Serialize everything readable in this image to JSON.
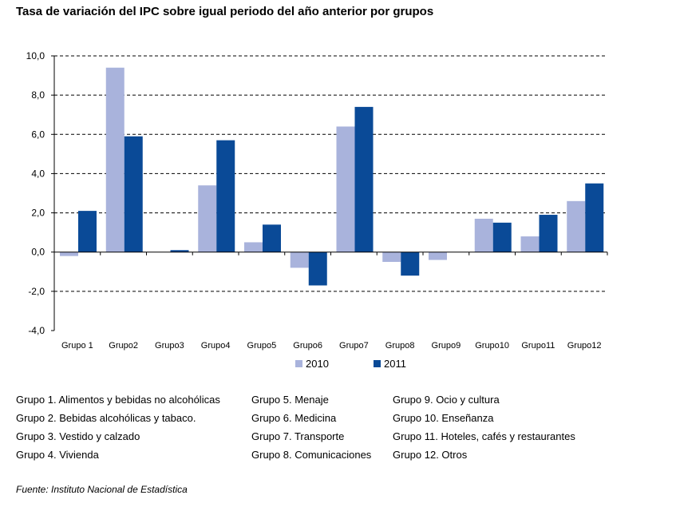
{
  "chart_data": {
    "type": "bar",
    "title": "Tasa de variación del IPC sobre igual periodo del año anterior por grupos",
    "categories": [
      "Grupo 1",
      "Grupo2",
      "Grupo3",
      "Grupo4",
      "Grupo5",
      "Grupo6",
      "Grupo7",
      "Grupo8",
      "Grupo9",
      "Grupo10",
      "Grupo11",
      "Grupo12"
    ],
    "series": [
      {
        "name": "2010",
        "color": "#a9b3dc",
        "values": [
          -0.2,
          9.4,
          0.0,
          3.4,
          0.5,
          -0.8,
          6.4,
          -0.5,
          -0.4,
          1.7,
          0.8,
          2.6
        ]
      },
      {
        "name": "2011",
        "color": "#0a4a97",
        "values": [
          2.1,
          5.9,
          0.1,
          5.7,
          1.4,
          -1.7,
          7.4,
          -1.2,
          0.0,
          1.5,
          1.9,
          3.5
        ]
      }
    ],
    "yticks": [
      "10,0",
      "8,0",
      "6,0",
      "4,0",
      "2,0",
      "0,0",
      "-2,0",
      "-4,0"
    ],
    "ytick_values": [
      10,
      8,
      6,
      4,
      2,
      0,
      -2,
      -4
    ],
    "ylim": [
      -4,
      10
    ],
    "grid": true,
    "grid_style": "dashed",
    "legend_position": "bottom"
  },
  "groups_legend": [
    [
      "Grupo 1. Alimentos y bebidas no alcohólicas",
      "Grupo 2. Bebidas alcohólicas y  tabaco.",
      "Grupo 3. Vestido y calzado",
      "Grupo 4. Vivienda"
    ],
    [
      "Grupo 5. Menaje",
      "Grupo 6. Medicina",
      "Grupo 7. Transporte",
      "Grupo 8. Comunicaciones"
    ],
    [
      "Grupo 9. Ocio y cultura",
      "Grupo 10. Enseñanza",
      "Grupo 11. Hoteles, cafés y restaurantes",
      "Grupo 12. Otros"
    ]
  ],
  "source": "Fuente: Instituto Nacional de Estadística"
}
